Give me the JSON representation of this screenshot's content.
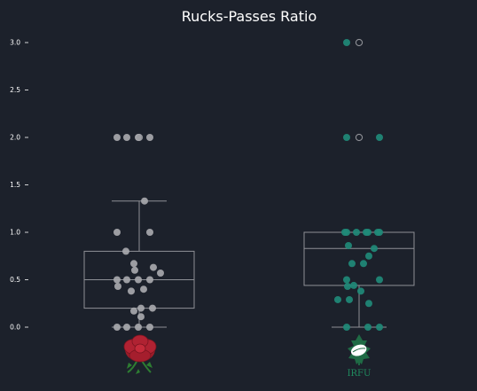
{
  "chart_data": {
    "type": "box+strip",
    "title": "Rucks-Passes Ratio",
    "xlabel": "",
    "ylabel": "",
    "ylim": [
      -0.05,
      3.1
    ],
    "yticks": [
      "0.0",
      "0.5",
      "1.0",
      "1.5",
      "2.0",
      "2.5",
      "3.0"
    ],
    "grid": false,
    "categories": [
      "England",
      "Ireland"
    ],
    "series": [
      {
        "team": "England",
        "color": "#a7a8ac",
        "box": {
          "whisker_low": 0.0,
          "q1": 0.2,
          "median": 0.5,
          "q3": 0.8,
          "whisker_high": 1.33
        },
        "points": [
          0,
          0,
          0,
          0,
          0.11,
          0.17,
          0.2,
          0.2,
          0.38,
          0.4,
          0.43,
          0.5,
          0.5,
          0.5,
          0.5,
          0.57,
          0.6,
          0.63,
          0.67,
          0.8,
          1.0,
          1.0,
          1.33,
          2.0,
          2.0,
          2.0,
          2.0
        ],
        "outliers": [
          2.0
        ]
      },
      {
        "team": "Ireland",
        "color": "#1f8a78",
        "box": {
          "whisker_low": 0.0,
          "q1": 0.44,
          "median": 0.83,
          "q3": 1.0,
          "whisker_high": 1.0
        },
        "points": [
          0,
          0,
          0,
          0.25,
          0.29,
          0.29,
          0.38,
          0.43,
          0.44,
          0.5,
          0.5,
          0.67,
          0.67,
          0.75,
          0.83,
          0.86,
          1.0,
          1.0,
          1.0,
          1.0,
          1.0,
          1.0,
          1.0,
          2.0,
          2.0,
          3.0
        ],
        "outliers": [
          2.0,
          3.0
        ]
      }
    ],
    "logos": [
      "england-rose-logo",
      "irfu-logo"
    ]
  },
  "logo_text": {
    "irfu": "IRFU"
  }
}
